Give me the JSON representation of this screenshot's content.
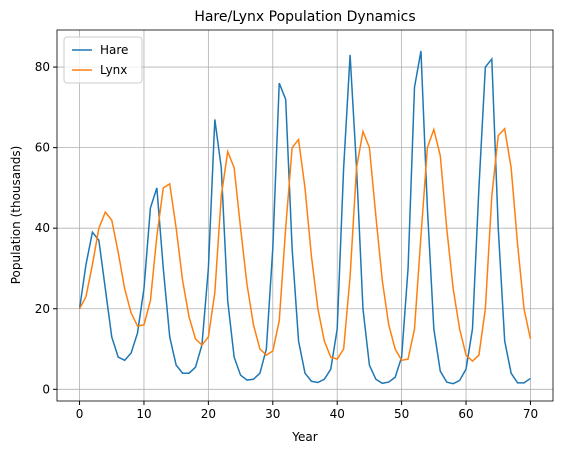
{
  "chart_data": {
    "type": "line",
    "title": "Hare/Lynx Population Dynamics",
    "xlabel": "Year",
    "ylabel": "Population (thousands)",
    "x": [
      0,
      1,
      2,
      3,
      4,
      5,
      6,
      7,
      8,
      9,
      10,
      11,
      12,
      13,
      14,
      15,
      16,
      17,
      18,
      19,
      20,
      21,
      22,
      23,
      24,
      25,
      26,
      27,
      28,
      29,
      30,
      31,
      32,
      33,
      34,
      35,
      36,
      37,
      38,
      39,
      40,
      41,
      42,
      43,
      44,
      45,
      46,
      47,
      48,
      49,
      50,
      51,
      52,
      53,
      54,
      55,
      56,
      57,
      58,
      59,
      60,
      61,
      62,
      63,
      64,
      65,
      66,
      67,
      68,
      69,
      70
    ],
    "series": [
      {
        "name": "Hare",
        "color": "#1f77b4",
        "values": [
          20,
          31,
          39,
          37,
          25,
          13,
          8,
          7.2,
          9,
          14,
          25,
          45,
          50,
          30,
          13,
          6,
          4,
          4,
          5.5,
          11,
          30,
          67,
          55,
          22,
          8,
          3.5,
          2.3,
          2.5,
          4,
          10,
          35,
          76,
          72,
          35,
          12,
          4,
          2,
          1.7,
          2.5,
          5,
          15,
          55,
          83,
          55,
          20,
          6,
          2.5,
          1.5,
          1.8,
          3,
          8,
          30,
          75,
          84,
          45,
          15,
          4.5,
          1.8,
          1.4,
          2.2,
          5,
          15,
          50,
          80,
          82,
          40,
          12,
          4,
          1.6,
          1.6,
          2.7
        ]
      },
      {
        "name": "Lynx",
        "color": "#ff7f0e",
        "values": [
          20,
          23,
          31,
          40,
          44,
          42,
          34,
          25,
          19,
          15.7,
          16,
          22,
          38,
          50,
          51,
          40,
          27,
          18,
          12.5,
          11,
          13,
          24,
          48,
          59,
          55,
          40,
          26,
          16,
          10,
          8.5,
          9.5,
          17,
          40,
          60,
          62,
          50,
          33,
          20,
          12,
          8,
          7.5,
          10,
          28,
          55,
          64,
          60,
          43,
          27,
          16,
          10,
          7.2,
          7.5,
          15,
          38,
          60,
          64.5,
          58,
          40,
          25,
          15,
          8.5,
          7,
          8.5,
          20,
          48,
          63,
          64.7,
          55,
          36,
          20,
          12.5
        ]
      }
    ],
    "xlim": [
      -3.5,
      73.5
    ],
    "ylim": [
      -2.9,
      89.2
    ],
    "xticks": [
      0,
      10,
      20,
      30,
      40,
      50,
      60,
      70
    ],
    "yticks": [
      0,
      20,
      40,
      60,
      80
    ],
    "grid": true,
    "legend": "upper left"
  }
}
